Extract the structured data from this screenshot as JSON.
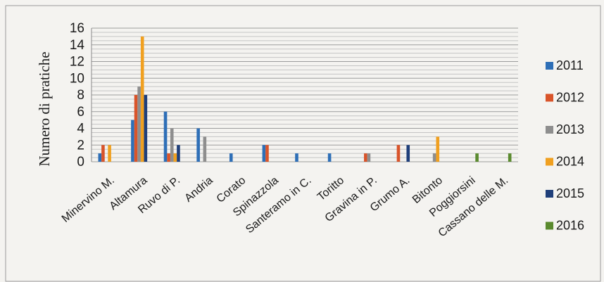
{
  "chart_data": {
    "type": "bar",
    "title": "",
    "xlabel": "",
    "ylabel": "Numero di pratiche",
    "ylim": [
      0,
      16
    ],
    "yticks": [
      0,
      2,
      4,
      6,
      8,
      10,
      12,
      14,
      16
    ],
    "grid": true,
    "legend_position": "right",
    "categories": [
      "Minervino M.",
      "Altamura",
      "Ruvo di P.",
      "Andria",
      "Corato",
      "Spinazzola",
      "Santeramo in C.",
      "Toritto",
      "Gravina in P.",
      "Grumo A.",
      "Bitonto",
      "Poggiorsini",
      "Cassano delle M."
    ],
    "series": [
      {
        "name": "2011",
        "color": "#2e6fb7",
        "values": [
          1,
          5,
          6,
          4,
          1,
          2,
          1,
          1,
          0,
          0,
          0,
          0,
          0
        ]
      },
      {
        "name": "2012",
        "color": "#d9542a",
        "values": [
          2,
          8,
          1,
          0,
          0,
          2,
          0,
          0,
          1,
          2,
          0,
          0,
          0
        ]
      },
      {
        "name": "2013",
        "color": "#8e8e8e",
        "values": [
          0,
          9,
          4,
          3,
          0,
          0,
          0,
          0,
          1,
          0,
          1,
          0,
          0
        ]
      },
      {
        "name": "2014",
        "color": "#f0a020",
        "values": [
          2,
          15,
          1,
          0,
          0,
          0,
          0,
          0,
          0,
          0,
          3,
          0,
          0
        ]
      },
      {
        "name": "2015",
        "color": "#1f3f7a",
        "values": [
          0,
          8,
          2,
          0,
          0,
          0,
          0,
          0,
          0,
          2,
          0,
          0,
          0
        ]
      },
      {
        "name": "2016",
        "color": "#5a8a2e",
        "values": [
          0,
          0,
          0,
          0,
          0,
          0,
          0,
          0,
          0,
          0,
          0,
          1,
          1
        ]
      }
    ]
  }
}
